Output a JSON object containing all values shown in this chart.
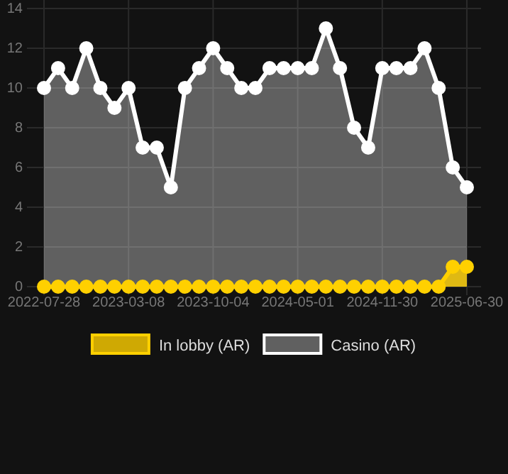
{
  "chart_data": {
    "type": "area",
    "categories": [
      "2022-07-28",
      null,
      null,
      null,
      null,
      null,
      "2023-03-08",
      null,
      null,
      null,
      null,
      null,
      "2023-10-04",
      null,
      null,
      null,
      null,
      null,
      "2024-05-01",
      null,
      null,
      null,
      null,
      null,
      "2024-11-30",
      null,
      null,
      null,
      null,
      null,
      "2025-06-30"
    ],
    "series": [
      {
        "name": "In lobby (AR)",
        "color": "#ffd000",
        "values": [
          0,
          0,
          0,
          0,
          0,
          0,
          0,
          0,
          0,
          0,
          0,
          0,
          0,
          0,
          0,
          0,
          0,
          0,
          0,
          0,
          0,
          0,
          0,
          0,
          0,
          0,
          0,
          0,
          0,
          1,
          1
        ]
      },
      {
        "name": "Casino (AR)",
        "color": "#ffffff",
        "values": [
          10,
          11,
          10,
          12,
          10,
          9,
          10,
          7,
          7,
          5,
          10,
          11,
          12,
          11,
          10,
          10,
          11,
          11,
          11,
          11,
          13,
          11,
          8,
          7,
          11,
          11,
          11,
          12,
          10,
          6,
          5
        ]
      }
    ],
    "ylim": [
      0,
      14
    ],
    "yticks": [
      0,
      2,
      4,
      6,
      8,
      10,
      12,
      14
    ],
    "grid": true,
    "legend": "bottom",
    "marker": "circle",
    "line_style": "solid"
  }
}
